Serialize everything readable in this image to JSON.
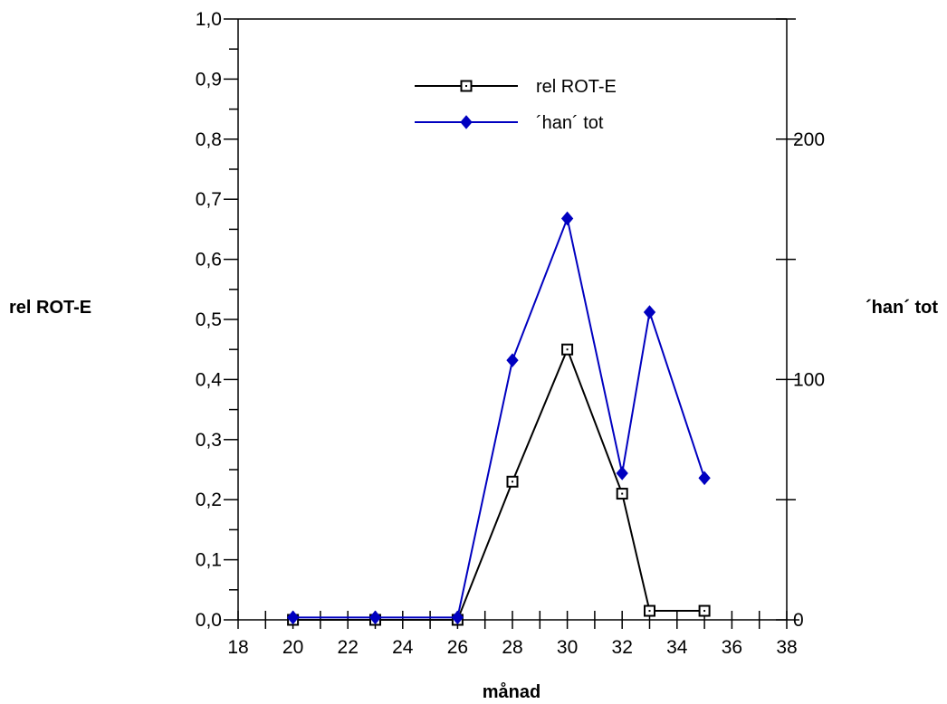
{
  "chart_data": {
    "type": "line",
    "xlabel": "månad",
    "ylabel_left": "rel ROT-E",
    "ylabel_right": "´han´ tot",
    "xlim": [
      18,
      38
    ],
    "ylim_left": [
      0.0,
      1.0
    ],
    "ylim_right": [
      0,
      250
    ],
    "x_ticks": [
      "18",
      "20",
      "22",
      "24",
      "26",
      "28",
      "30",
      "32",
      "34",
      "36",
      "38"
    ],
    "y_left_ticks": [
      "0,0",
      "0,1",
      "0,2",
      "0,3",
      "0,4",
      "0,5",
      "0,6",
      "0,7",
      "0,8",
      "0,9",
      "1,0"
    ],
    "y_right_ticks": [
      "0",
      "100",
      "200"
    ],
    "grid": false,
    "legend_position": "top-center",
    "series": [
      {
        "name": "rel ROT-E",
        "axis": "left",
        "color": "#000000",
        "marker": "open-square",
        "x": [
          20,
          23,
          26,
          28,
          30,
          32,
          33,
          35
        ],
        "y": [
          0.0,
          0.0,
          0.0,
          0.23,
          0.45,
          0.21,
          0.015,
          0.015
        ]
      },
      {
        "name": "´han´ tot",
        "axis": "right",
        "color": "#0000c0",
        "marker": "filled-diamond",
        "x": [
          20,
          23,
          26,
          28,
          30,
          32,
          33,
          35
        ],
        "y": [
          1,
          1,
          1,
          108,
          167,
          61,
          128,
          59
        ]
      }
    ]
  }
}
